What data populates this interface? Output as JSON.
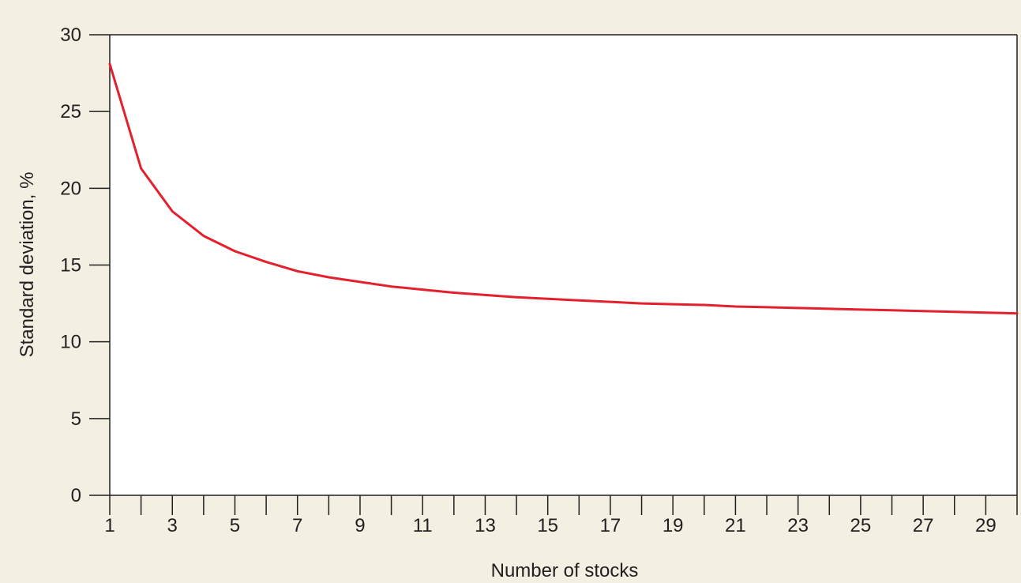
{
  "chart_data": {
    "type": "line",
    "title": "",
    "xlabel": "Number of stocks",
    "ylabel": "Standard deviation, %",
    "xlim": [
      1,
      30
    ],
    "ylim": [
      0,
      30
    ],
    "x_ticks": [
      1,
      2,
      3,
      4,
      5,
      6,
      7,
      8,
      9,
      10,
      11,
      12,
      13,
      14,
      15,
      16,
      17,
      18,
      19,
      20,
      21,
      22,
      23,
      24,
      25,
      26,
      27,
      28,
      29,
      30
    ],
    "x_tick_labels": [
      "1",
      "3",
      "5",
      "7",
      "9",
      "11",
      "13",
      "15",
      "17",
      "19",
      "21",
      "23",
      "25",
      "27",
      "29"
    ],
    "x_tick_label_values": [
      1,
      3,
      5,
      7,
      9,
      11,
      13,
      15,
      17,
      19,
      21,
      23,
      25,
      27,
      29
    ],
    "y_ticks": [
      0,
      5,
      10,
      15,
      20,
      25,
      30
    ],
    "y_tick_labels": [
      "0",
      "5",
      "10",
      "15",
      "20",
      "25",
      "30"
    ],
    "grid": false,
    "line_color": "#e4202d",
    "series": [
      {
        "x": [
          1,
          2,
          3,
          4,
          5,
          6,
          7,
          8,
          9,
          10,
          11,
          12,
          13,
          14,
          15,
          16,
          17,
          18,
          19,
          20,
          21,
          22,
          23,
          24,
          25,
          26,
          27,
          28,
          29,
          30
        ],
        "values": [
          28.1,
          21.3,
          18.5,
          16.9,
          15.9,
          15.2,
          14.6,
          14.2,
          13.9,
          13.6,
          13.4,
          13.2,
          13.05,
          12.9,
          12.8,
          12.7,
          12.6,
          12.5,
          12.45,
          12.4,
          12.3,
          12.25,
          12.2,
          12.15,
          12.1,
          12.05,
          12.0,
          11.95,
          11.9,
          11.85
        ]
      }
    ]
  }
}
